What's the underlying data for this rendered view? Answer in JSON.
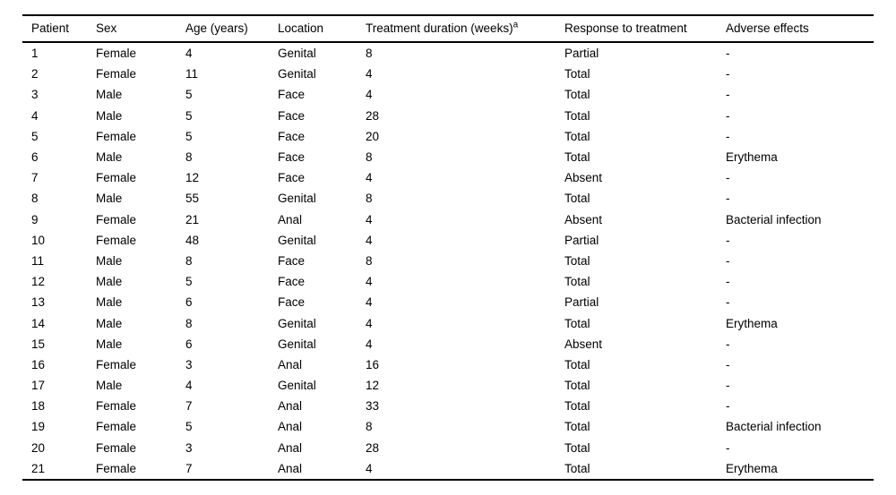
{
  "colors": {
    "background": "#ffffff",
    "text": "#000000",
    "rule": "#000000"
  },
  "table": {
    "columns": [
      {
        "label": "Patient",
        "sup": ""
      },
      {
        "label": "Sex",
        "sup": ""
      },
      {
        "label": "Age (years)",
        "sup": ""
      },
      {
        "label": "Location",
        "sup": ""
      },
      {
        "label": "Treatment duration (weeks)",
        "sup": "a"
      },
      {
        "label": "Response to treatment",
        "sup": ""
      },
      {
        "label": "Adverse effects",
        "sup": ""
      }
    ],
    "rows": [
      [
        "1",
        "Female",
        "4",
        "Genital",
        "8",
        "Partial",
        "-"
      ],
      [
        "2",
        "Female",
        "11",
        "Genital",
        "4",
        "Total",
        "-"
      ],
      [
        "3",
        "Male",
        "5",
        "Face",
        "4",
        "Total",
        "-"
      ],
      [
        "4",
        "Male",
        "5",
        "Face",
        "28",
        "Total",
        "-"
      ],
      [
        "5",
        "Female",
        "5",
        "Face",
        "20",
        "Total",
        "-"
      ],
      [
        "6",
        "Male",
        "8",
        "Face",
        "8",
        "Total",
        "Erythema"
      ],
      [
        "7",
        "Female",
        "12",
        "Face",
        "4",
        "Absent",
        "-"
      ],
      [
        "8",
        "Male",
        "55",
        "Genital",
        "8",
        "Total",
        "-"
      ],
      [
        "9",
        "Female",
        "21",
        "Anal",
        "4",
        "Absent",
        "Bacterial infection"
      ],
      [
        "10",
        "Female",
        "48",
        "Genital",
        "4",
        "Partial",
        "-"
      ],
      [
        "11",
        "Male",
        "8",
        "Face",
        "8",
        "Total",
        "-"
      ],
      [
        "12",
        "Male",
        "5",
        "Face",
        "4",
        "Total",
        "-"
      ],
      [
        "13",
        "Male",
        "6",
        "Face",
        "4",
        "Partial",
        "-"
      ],
      [
        "14",
        "Male",
        "8",
        "Genital",
        "4",
        "Total",
        "Erythema"
      ],
      [
        "15",
        "Male",
        "6",
        "Genital",
        "4",
        "Absent",
        "-"
      ],
      [
        "16",
        "Female",
        "3",
        "Anal",
        "16",
        "Total",
        "-"
      ],
      [
        "17",
        "Male",
        "4",
        "Genital",
        "12",
        "Total",
        "-"
      ],
      [
        "18",
        "Female",
        "7",
        "Anal",
        "33",
        "Total",
        "-"
      ],
      [
        "19",
        "Female",
        "5",
        "Anal",
        "8",
        "Total",
        "Bacterial infection"
      ],
      [
        "20",
        "Female",
        "3",
        "Anal",
        "28",
        "Total",
        "-"
      ],
      [
        "21",
        "Female",
        "7",
        "Anal",
        "4",
        "Total",
        "Erythema"
      ]
    ]
  }
}
